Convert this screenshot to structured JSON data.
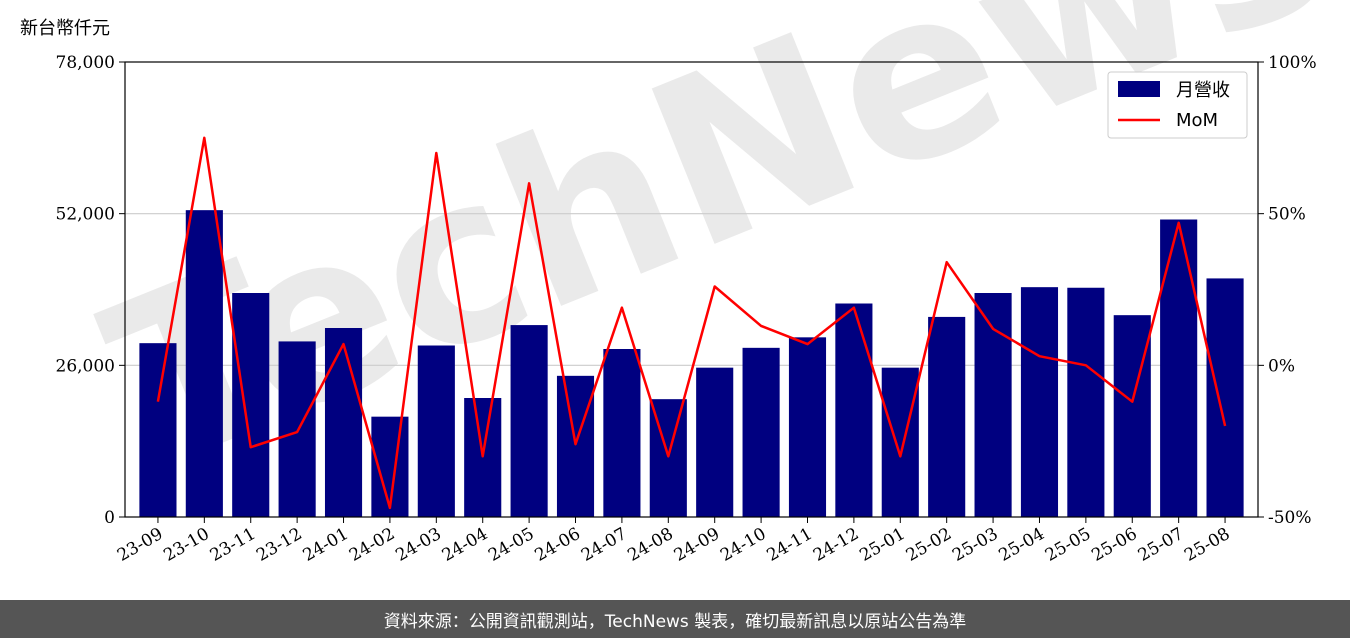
{
  "chart_data": {
    "type": "bar",
    "categories": [
      "23-09",
      "23-10",
      "23-11",
      "23-12",
      "24-01",
      "24-02",
      "24-03",
      "24-04",
      "24-05",
      "24-06",
      "24-07",
      "24-08",
      "24-09",
      "24-10",
      "24-11",
      "24-12",
      "25-01",
      "25-02",
      "25-03",
      "25-04",
      "25-05",
      "25-06",
      "25-07",
      "25-08"
    ],
    "series": [
      {
        "name": "月營收",
        "axis": "left",
        "kind": "bar",
        "color": "#000080",
        "values": [
          29800,
          52600,
          38400,
          30100,
          32400,
          17200,
          29400,
          20400,
          32900,
          24200,
          28800,
          20200,
          25600,
          29000,
          30800,
          36600,
          25600,
          34300,
          38400,
          39400,
          39300,
          34600,
          51000,
          40900
        ]
      },
      {
        "name": "MoM",
        "axis": "right",
        "kind": "line",
        "color": "#ff0000",
        "values": [
          -12,
          75,
          -27,
          -22,
          7,
          -47,
          70,
          -30,
          60,
          -26,
          19,
          -30,
          26,
          13,
          7,
          19,
          -30,
          34,
          12,
          3,
          0,
          -12,
          47,
          -20
        ]
      }
    ],
    "y_left": {
      "unit": "新台幣仟元",
      "lim": [
        0,
        78000
      ],
      "ticks": [
        "0",
        "26,000",
        "52,000",
        "78,000"
      ],
      "tick_values": [
        0,
        26000,
        52000,
        78000
      ]
    },
    "y_right": {
      "lim": [
        -50,
        100
      ],
      "ticks": [
        "-50%",
        "0%",
        "50%",
        "100%"
      ],
      "tick_values": [
        -50,
        0,
        50,
        100
      ]
    },
    "grid": "horizontal",
    "legend": "top-right",
    "watermark": "TechNews"
  },
  "footer": {
    "text": "資料來源：公開資訊觀測站，TechNews 製表，確切最新訊息以原站公告為準"
  }
}
